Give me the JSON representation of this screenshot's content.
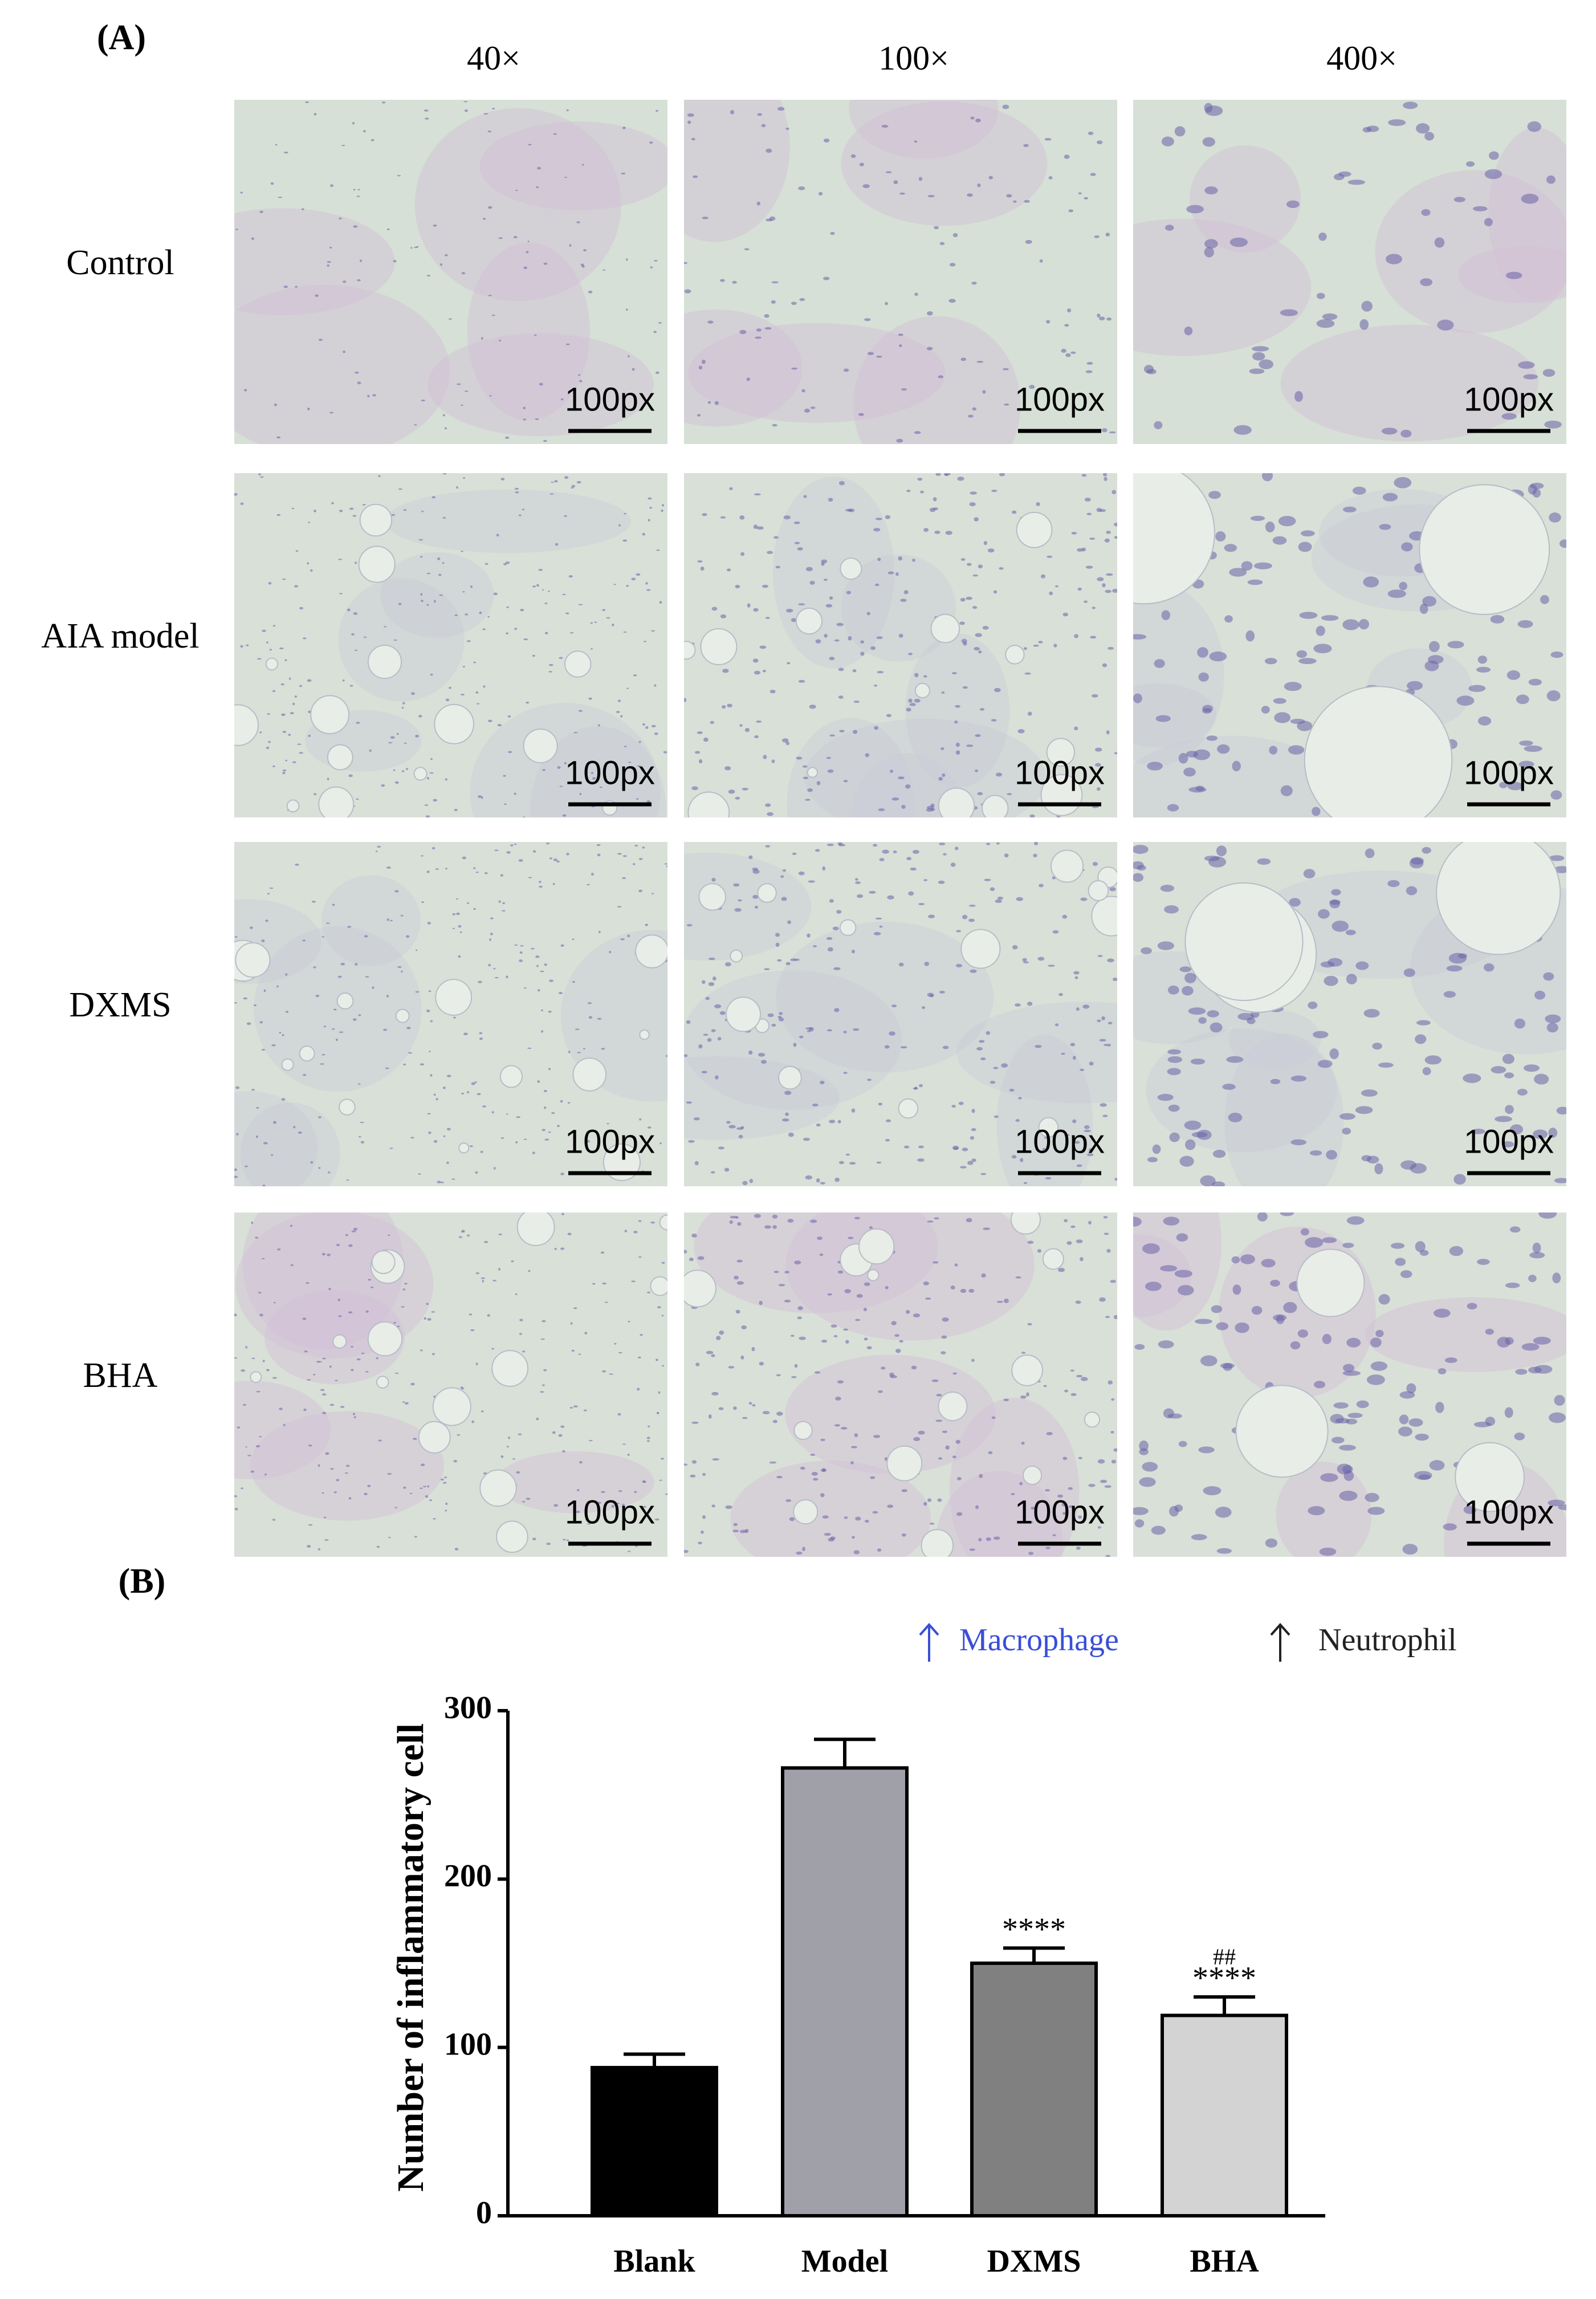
{
  "panel_a": {
    "label": "(A)",
    "columns": [
      "40×",
      "100×",
      "400×"
    ],
    "rows": [
      "Control",
      "AIA model",
      "DXMS",
      "BHA"
    ],
    "scale_labels": [
      [
        "100px",
        "100px",
        "100px"
      ],
      [
        "100px",
        "100px",
        "100px"
      ],
      [
        "100px",
        "100px",
        "100px"
      ],
      [
        "100px",
        "100px",
        "100px"
      ]
    ]
  },
  "legend": {
    "macrophage": "Macrophage",
    "macrophage_color": "#3a4fd6",
    "neutrophil": "Neutrophil",
    "neutrophil_color": "#222222"
  },
  "chart_data": {
    "type": "bar",
    "label": "(B)",
    "ylabel": "Number of inflammatory cell",
    "categories": [
      "Blank",
      "Model",
      "DXMS",
      "BHA"
    ],
    "values": [
      88,
      266,
      150,
      119
    ],
    "errors": [
      8,
      17,
      9,
      11
    ],
    "colors": [
      "#000000",
      "#a0a0a8",
      "#808080",
      "#d3d3d3"
    ],
    "significance": [
      null,
      null,
      "****",
      "****"
    ],
    "secondary_significance": [
      null,
      null,
      null,
      "##"
    ],
    "ylim": [
      0,
      300
    ],
    "yticks": [
      0,
      100,
      200,
      300
    ]
  }
}
